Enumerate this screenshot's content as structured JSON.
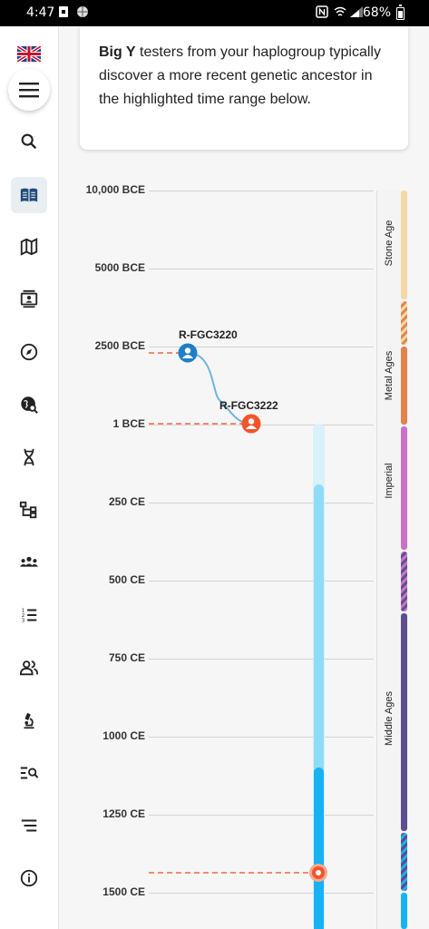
{
  "status_bar": {
    "time": "4:47",
    "battery_percent": "68%",
    "icons": [
      "notification-icon",
      "basketball-icon",
      "nfc-icon",
      "wifi-icon",
      "signal-icon",
      "battery-icon"
    ]
  },
  "sidebar": {
    "flag": "uk-flag-icon",
    "items": [
      {
        "name": "search-icon",
        "active": false
      },
      {
        "name": "book-icon",
        "active": true
      },
      {
        "name": "map-icon",
        "active": false
      },
      {
        "name": "contact-card-icon",
        "active": false
      },
      {
        "name": "compass-icon",
        "active": false
      },
      {
        "name": "globe-search-icon",
        "active": false
      },
      {
        "name": "dna-icon",
        "active": false
      },
      {
        "name": "tree-icon",
        "active": false
      },
      {
        "name": "group-icon",
        "active": false
      },
      {
        "name": "numbered-list-icon",
        "active": false
      },
      {
        "name": "people-icon",
        "active": false
      },
      {
        "name": "microscope-icon",
        "active": false
      },
      {
        "name": "list-search-icon",
        "active": false
      },
      {
        "name": "sort-icon",
        "active": false
      },
      {
        "name": "info-icon",
        "active": false
      }
    ],
    "accent_color": "#1f4d7a"
  },
  "info_card": {
    "bold": "Big Y",
    "text": " testers from your haplogroup typically discover a more recent genetic ancestor in the highlighted time range below."
  },
  "chart_data": {
    "type": "timeline",
    "y_axis_ticks": [
      "10,000 BCE",
      "5000 BCE",
      "2500 BCE",
      "1 BCE",
      "250 CE",
      "500 CE",
      "750 CE",
      "1000 CE",
      "1250 CE",
      "1500 CE"
    ],
    "nodes": [
      {
        "label": "R-FGC3220",
        "tick": "2500 BCE",
        "color": "#1e7fc6"
      },
      {
        "label": "R-FGC3222",
        "tick": "1 BCE",
        "color": "#f2552c"
      }
    ],
    "marker_color": "#f2552c",
    "highlight_range": {
      "outer_start_ce": 0,
      "light_start_ce": 200,
      "dark_start_ce": 1100,
      "marker_ce": 1425,
      "colors": {
        "outer": "#d8f1fb",
        "light": "#8fdcf6",
        "dark": "#18b2f2"
      }
    },
    "eras": [
      {
        "label": "Stone Age",
        "color": "#f2d9a6"
      },
      {
        "label": "Metal Ages",
        "color": "#e3834a"
      },
      {
        "label": "Imperial",
        "color": "#c873c7"
      },
      {
        "label": "Middle Ages",
        "color": "#5d4e8f"
      }
    ],
    "grid": true
  }
}
